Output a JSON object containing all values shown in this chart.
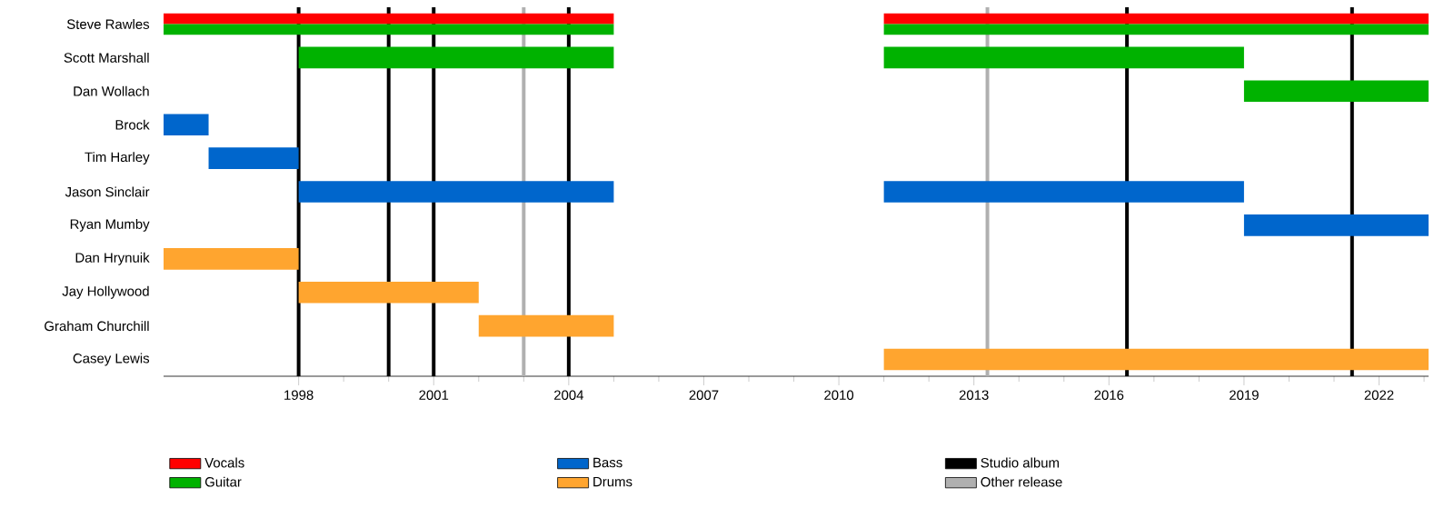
{
  "chart_data": {
    "type": "bar",
    "orientation": "horizontal",
    "categories": [
      "Steve Rawles",
      "Scott Marshall",
      "Dan Wollach",
      "Brock",
      "Tim Harley",
      "Jason Sinclair",
      "Ryan Mumby",
      "Dan Hrynuik",
      "Jay Hollywood",
      "Graham Churchill",
      "Casey Lewis"
    ],
    "series": [
      {
        "name": "Vocals",
        "color": "#ff0000",
        "base": [
          1995,
          null,
          null,
          null,
          null,
          null,
          null,
          null,
          null,
          null,
          null
        ],
        "values": [
          10,
          null,
          null,
          null,
          null,
          null,
          null,
          null,
          null,
          null,
          null
        ]
      },
      {
        "color": "#ff0000",
        "base": [
          2011,
          null,
          null,
          null,
          null,
          null,
          null,
          null,
          null,
          null,
          null
        ],
        "values": [
          12.1,
          null,
          null,
          null,
          null,
          null,
          null,
          null,
          null,
          null,
          null
        ]
      },
      {
        "name": "Guitar",
        "color": "#00b200",
        "base": [
          1995,
          1998,
          null,
          null,
          null,
          null,
          null,
          null,
          null,
          null,
          null
        ],
        "values": [
          10,
          7,
          null,
          null,
          null,
          null,
          null,
          null,
          null,
          null,
          null
        ]
      },
      {
        "color": "#00b200",
        "base": [
          2011,
          2011,
          2019,
          null,
          null,
          null,
          null,
          null,
          null,
          null,
          null
        ],
        "values": [
          12.1,
          8,
          4.1,
          null,
          null,
          null,
          null,
          null,
          null,
          null,
          null
        ]
      },
      {
        "name": "Bass",
        "color": "#0066cc",
        "base": [
          null,
          null,
          null,
          1995,
          1996,
          1998,
          null,
          null,
          null,
          null,
          null
        ],
        "values": [
          null,
          null,
          null,
          1,
          2,
          7,
          null,
          null,
          null,
          null,
          null
        ]
      },
      {
        "color": "#0066cc",
        "base": [
          null,
          null,
          null,
          null,
          null,
          2011,
          2019,
          null,
          null,
          null,
          null
        ],
        "values": [
          null,
          null,
          null,
          null,
          null,
          8,
          4.1,
          null,
          null,
          null,
          null
        ]
      },
      {
        "name": "Drums",
        "color": "#ffa52f",
        "base": [
          null,
          null,
          null,
          null,
          null,
          null,
          null,
          1995,
          1998,
          2002,
          null
        ],
        "values": [
          null,
          null,
          null,
          null,
          null,
          null,
          null,
          3,
          4,
          3,
          null
        ]
      },
      {
        "color": "#ffa52f",
        "base": [
          null,
          null,
          null,
          null,
          null,
          null,
          null,
          null,
          null,
          null,
          2011
        ],
        "values": [
          null,
          null,
          null,
          null,
          null,
          null,
          null,
          null,
          null,
          null,
          12.1
        ]
      }
    ],
    "ref_lines": [
      {
        "axis": "x",
        "value": 1998,
        "label": "Studio album",
        "color": "#000000"
      },
      {
        "axis": "x",
        "value": 2000,
        "color": "#000000"
      },
      {
        "axis": "x",
        "value": 2001,
        "color": "#000000"
      },
      {
        "axis": "x",
        "value": 2003,
        "label": "Other release",
        "color": "#b0b0b0"
      },
      {
        "axis": "x",
        "value": 2004,
        "color": "#000000"
      },
      {
        "axis": "x",
        "value": 2013.3,
        "color": "#b0b0b0"
      },
      {
        "axis": "x",
        "value": 2016.4,
        "color": "#000000"
      },
      {
        "axis": "x",
        "value": 2021.4,
        "color": "#000000"
      }
    ],
    "xlim": [
      1995,
      2023.1
    ],
    "xticks": [
      1998,
      {
        "value": 1999,
        "label": null
      },
      {
        "value": 2000,
        "label": null
      },
      2001,
      {
        "value": 2002,
        "label": null
      },
      {
        "value": 2003,
        "label": null
      },
      2004,
      {
        "value": 2005,
        "label": null
      },
      {
        "value": 2006,
        "label": null
      },
      2007,
      {
        "value": 2008,
        "label": null
      },
      {
        "value": 2009,
        "label": null
      },
      2010,
      {
        "value": 2011,
        "label": null
      },
      {
        "value": 2012,
        "label": null
      },
      2013,
      {
        "value": 2014,
        "label": null
      },
      {
        "value": 2015,
        "label": null
      },
      2016,
      {
        "value": 2017,
        "label": null
      },
      {
        "value": 2018,
        "label": null
      },
      2019,
      {
        "value": 2020,
        "label": null
      },
      {
        "value": 2021,
        "label": null
      },
      2022,
      {
        "value": 2023,
        "label": null
      }
    ],
    "legend": "bottom",
    "grid": false
  }
}
